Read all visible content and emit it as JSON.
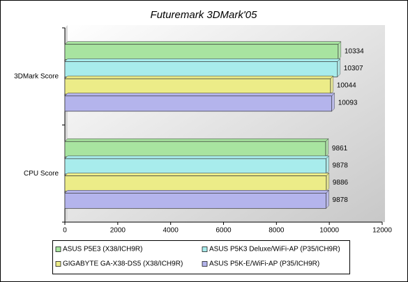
{
  "chart_data": {
    "type": "hbar",
    "title": "Futuremark 3DMark'05",
    "categories": [
      "3DMark Score",
      "CPU Score"
    ],
    "series": [
      {
        "name": "ASUS P5E3 (X38/ICH9R)",
        "color": "#a8e4a0",
        "values": [
          10334,
          9861
        ]
      },
      {
        "name": "ASUS P5K3 Deluxe/WiFi-AP (P35/ICH9R)",
        "color": "#a8ecec",
        "values": [
          10307,
          9878
        ]
      },
      {
        "name": "GIGABYTE GA-X38-DS5 (X38/ICH9R)",
        "color": "#ecec88",
        "values": [
          10044,
          9886
        ]
      },
      {
        "name": "ASUS P5K-E/WiFi-AP (P35/ICH9R)",
        "color": "#b4b4ec",
        "values": [
          10093,
          9878
        ]
      }
    ],
    "xlim": [
      0,
      12000
    ],
    "xticks": [
      0,
      2000,
      4000,
      6000,
      8000,
      10000,
      12000
    ],
    "legend": "bottom"
  }
}
